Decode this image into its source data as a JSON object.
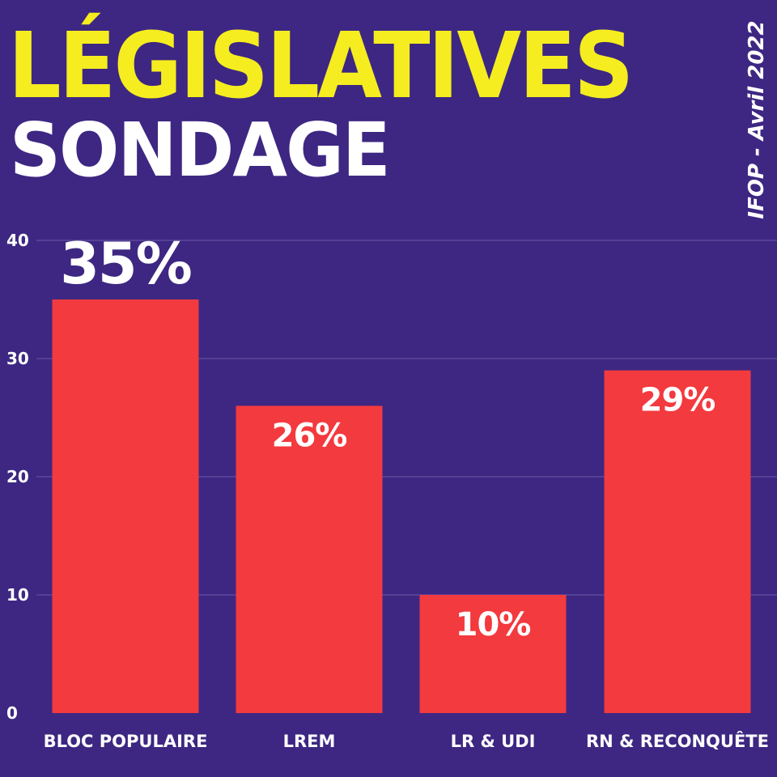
{
  "header": {
    "title": "LÉGISLATIVES",
    "subtitle": "SONDAGE",
    "source": "IFOP - Avril 2022"
  },
  "colors": {
    "background": "#3d2782",
    "bar": "#f33a3e",
    "title": "#f5ed1f",
    "highlight_label": "#f5ed1f",
    "text": "#ffffff",
    "grid": "#6a5aa6"
  },
  "chart_data": {
    "type": "bar",
    "title": "",
    "xlabel": "",
    "ylabel": "",
    "categories": [
      "BLOC POPULAIRE",
      "LREM",
      "LR & UDI",
      "RN & RECONQUÊTE"
    ],
    "values": [
      35,
      26,
      10,
      29
    ],
    "data_labels": [
      "35%",
      "26%",
      "10%",
      "29%"
    ],
    "highlight_index": 0,
    "ylim": [
      0,
      40
    ],
    "yticks": [
      0,
      10,
      20,
      30,
      40
    ],
    "grid": true
  }
}
